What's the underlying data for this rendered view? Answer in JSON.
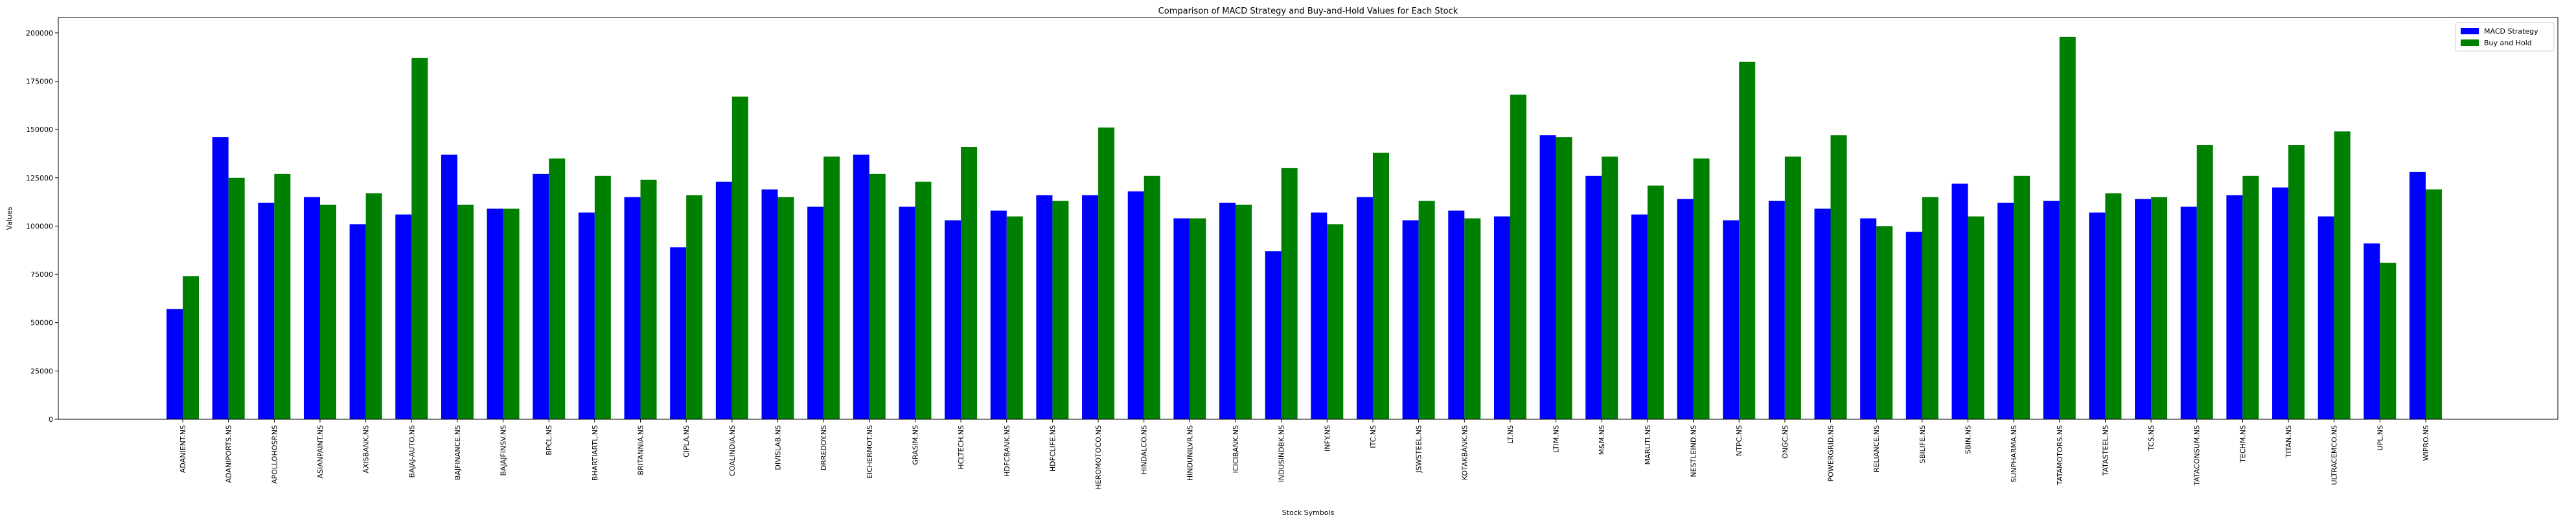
{
  "chart_data": {
    "type": "bar",
    "title": "Comparison of MACD Strategy and Buy-and-Hold Values for Each Stock",
    "xlabel": "Stock Symbols",
    "ylabel": "Values",
    "ylim": [
      0,
      208000
    ],
    "yticks": [
      0,
      25000,
      50000,
      75000,
      100000,
      125000,
      150000,
      175000,
      200000
    ],
    "legend_position": "top-right",
    "grid": false,
    "categories": [
      "ADANIENT.NS",
      "ADANIPORTS.NS",
      "APOLLOHOSP.NS",
      "ASIANPAINT.NS",
      "AXISBANK.NS",
      "BAJAJ-AUTO.NS",
      "BAJFINANCE.NS",
      "BAJAJFINSV.NS",
      "BPCL.NS",
      "BHARTIARTL.NS",
      "BRITANNIA.NS",
      "CIPLA.NS",
      "COALINDIA.NS",
      "DIVISLAB.NS",
      "DRREDDY.NS",
      "EICHERMOT.NS",
      "GRASIM.NS",
      "HCLTECH.NS",
      "HDFCBANK.NS",
      "HDFCLIFE.NS",
      "HEROMOTOCO.NS",
      "HINDALCO.NS",
      "HINDUNILVR.NS",
      "ICICIBANK.NS",
      "INDUSINDBK.NS",
      "INFY.NS",
      "ITC.NS",
      "JSWSTEEL.NS",
      "KOTAKBANK.NS",
      "LT.NS",
      "LTIM.NS",
      "M&M.NS",
      "MARUTI.NS",
      "NESTLEIND.NS",
      "NTPC.NS",
      "ONGC.NS",
      "POWERGRID.NS",
      "RELIANCE.NS",
      "SBILIFE.NS",
      "SBIN.NS",
      "SUNPHARMA.NS",
      "TATAMOTORS.NS",
      "TATASTEEL.NS",
      "TCS.NS",
      "TATACONSUM.NS",
      "TECHM.NS",
      "TITAN.NS",
      "ULTRACEMCO.NS",
      "UPL.NS",
      "WIPRO.NS"
    ],
    "series": [
      {
        "name": "MACD Strategy",
        "color": "#0000ff",
        "values": [
          57000,
          146000,
          112000,
          115000,
          101000,
          106000,
          137000,
          109000,
          127000,
          107000,
          115000,
          89000,
          123000,
          119000,
          110000,
          137000,
          110000,
          103000,
          108000,
          116000,
          116000,
          118000,
          104000,
          112000,
          87000,
          107000,
          115000,
          103000,
          108000,
          105000,
          147000,
          126000,
          106000,
          114000,
          103000,
          113000,
          109000,
          104000,
          97000,
          122000,
          112000,
          113000,
          107000,
          114000,
          110000,
          116000,
          120000,
          105000,
          91000,
          128000
        ]
      },
      {
        "name": "Buy and Hold",
        "color": "#008000",
        "values": [
          74000,
          125000,
          127000,
          111000,
          117000,
          187000,
          111000,
          109000,
          135000,
          126000,
          124000,
          116000,
          167000,
          115000,
          136000,
          127000,
          123000,
          141000,
          105000,
          113000,
          151000,
          126000,
          104000,
          111000,
          130000,
          101000,
          138000,
          113000,
          104000,
          168000,
          146000,
          136000,
          121000,
          135000,
          185000,
          136000,
          147000,
          100000,
          115000,
          105000,
          126000,
          198000,
          117000,
          115000,
          142000,
          126000,
          142000,
          149000,
          81000,
          119000
        ]
      }
    ]
  }
}
